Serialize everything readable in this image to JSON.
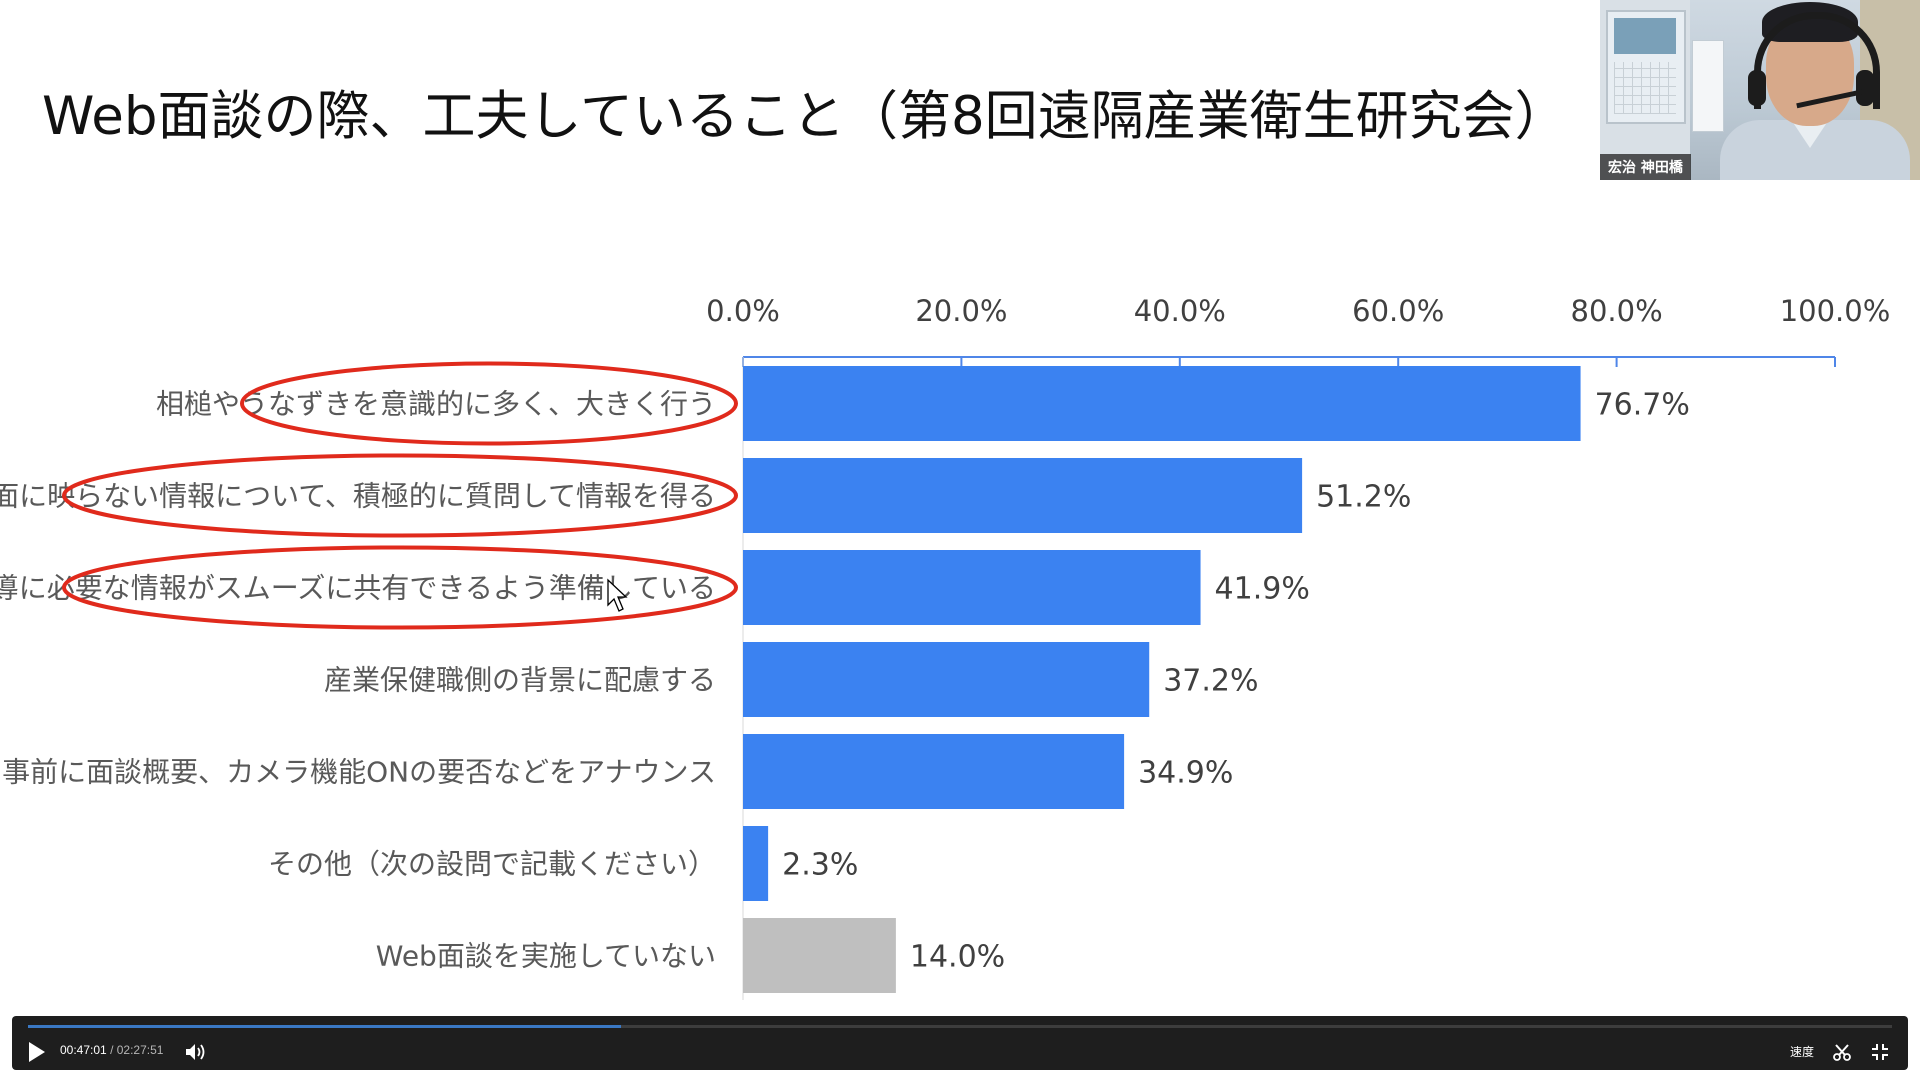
{
  "slide": {
    "title": "Web面談の際、工夫していること（第8回遠隔産業衛生研究会）"
  },
  "chart_data": {
    "type": "bar",
    "orientation": "horizontal",
    "categories": [
      "相槌やうなずきを意識的に多く、大きく行う",
      "画面に映らない情報について、積極的に質問して情報を得る",
      "指導に必要な情報がスムーズに共有できるよう準備している",
      "産業保健職側の背景に配慮する",
      "事前に面談概要、カメラ機能ONの要否などをアナウンス",
      "その他（次の設問で記載ください）",
      "Web面談を実施していない"
    ],
    "values": [
      76.7,
      51.2,
      41.9,
      37.2,
      34.9,
      2.3,
      14.0
    ],
    "data_labels": [
      "76.7%",
      "51.2%",
      "41.9%",
      "37.2%",
      "34.9%",
      "2.3%",
      "14.0%"
    ],
    "bar_colors": [
      "#3b82f1",
      "#3b82f1",
      "#3b82f1",
      "#3b82f1",
      "#3b82f1",
      "#3b82f1",
      "#bfbfbf"
    ],
    "x_ticks": [
      "0.0%",
      "20.0%",
      "40.0%",
      "60.0%",
      "80.0%",
      "100.0%"
    ],
    "xlim": [
      0,
      100
    ],
    "axis_position": "top",
    "highlighted_categories": [
      0,
      1,
      2
    ],
    "highlight_color": "#e02a1c"
  },
  "video": {
    "participant_name": "宏治 神田橋"
  },
  "player": {
    "current_time": "00:47:01",
    "separator": "/",
    "total_time": "02:27:51",
    "progress": 0.318,
    "speed_label": "速度",
    "accent_color": "#3a78c4"
  }
}
